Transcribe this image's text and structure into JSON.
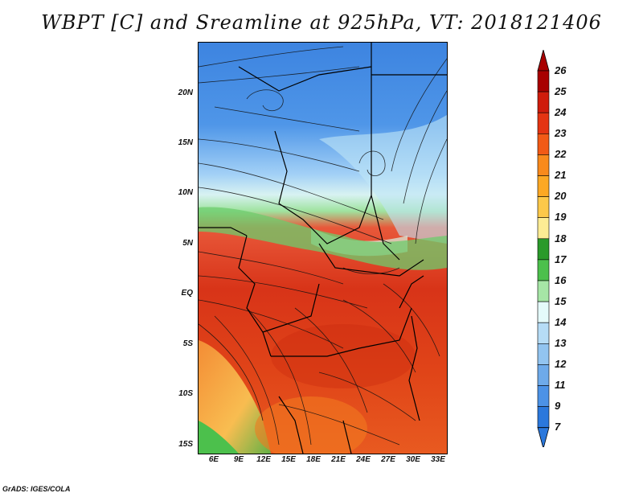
{
  "title": "WBPT [C] and Sreamline at 925hPa, VT: 2018121406",
  "credit": "GrADS: IGES/COLA",
  "lat_labels": [
    "20N",
    "15N",
    "10N",
    "5N",
    "EQ",
    "5S",
    "10S",
    "15S"
  ],
  "lon_labels": [
    "6E",
    "9E",
    "12E",
    "15E",
    "18E",
    "21E",
    "24E",
    "27E",
    "30E",
    "33E"
  ],
  "colorbar": {
    "labels": [
      "26",
      "25",
      "24",
      "23",
      "22",
      "21",
      "20",
      "19",
      "18",
      "17",
      "16",
      "15",
      "14",
      "13",
      "12",
      "11",
      "9",
      "7"
    ],
    "colors": [
      "#a80000",
      "#cf1c0c",
      "#e43412",
      "#f25a16",
      "#f98a1c",
      "#fca824",
      "#fcc84a",
      "#fdec94",
      "#2a9a2a",
      "#4cc04c",
      "#a6e6a6",
      "#e4fafa",
      "#b6dcf6",
      "#92c4f0",
      "#6eaaea",
      "#4c92e6",
      "#2b78dc"
    ]
  },
  "icons": [
    "streamline-arrows",
    "country-borders"
  ]
}
